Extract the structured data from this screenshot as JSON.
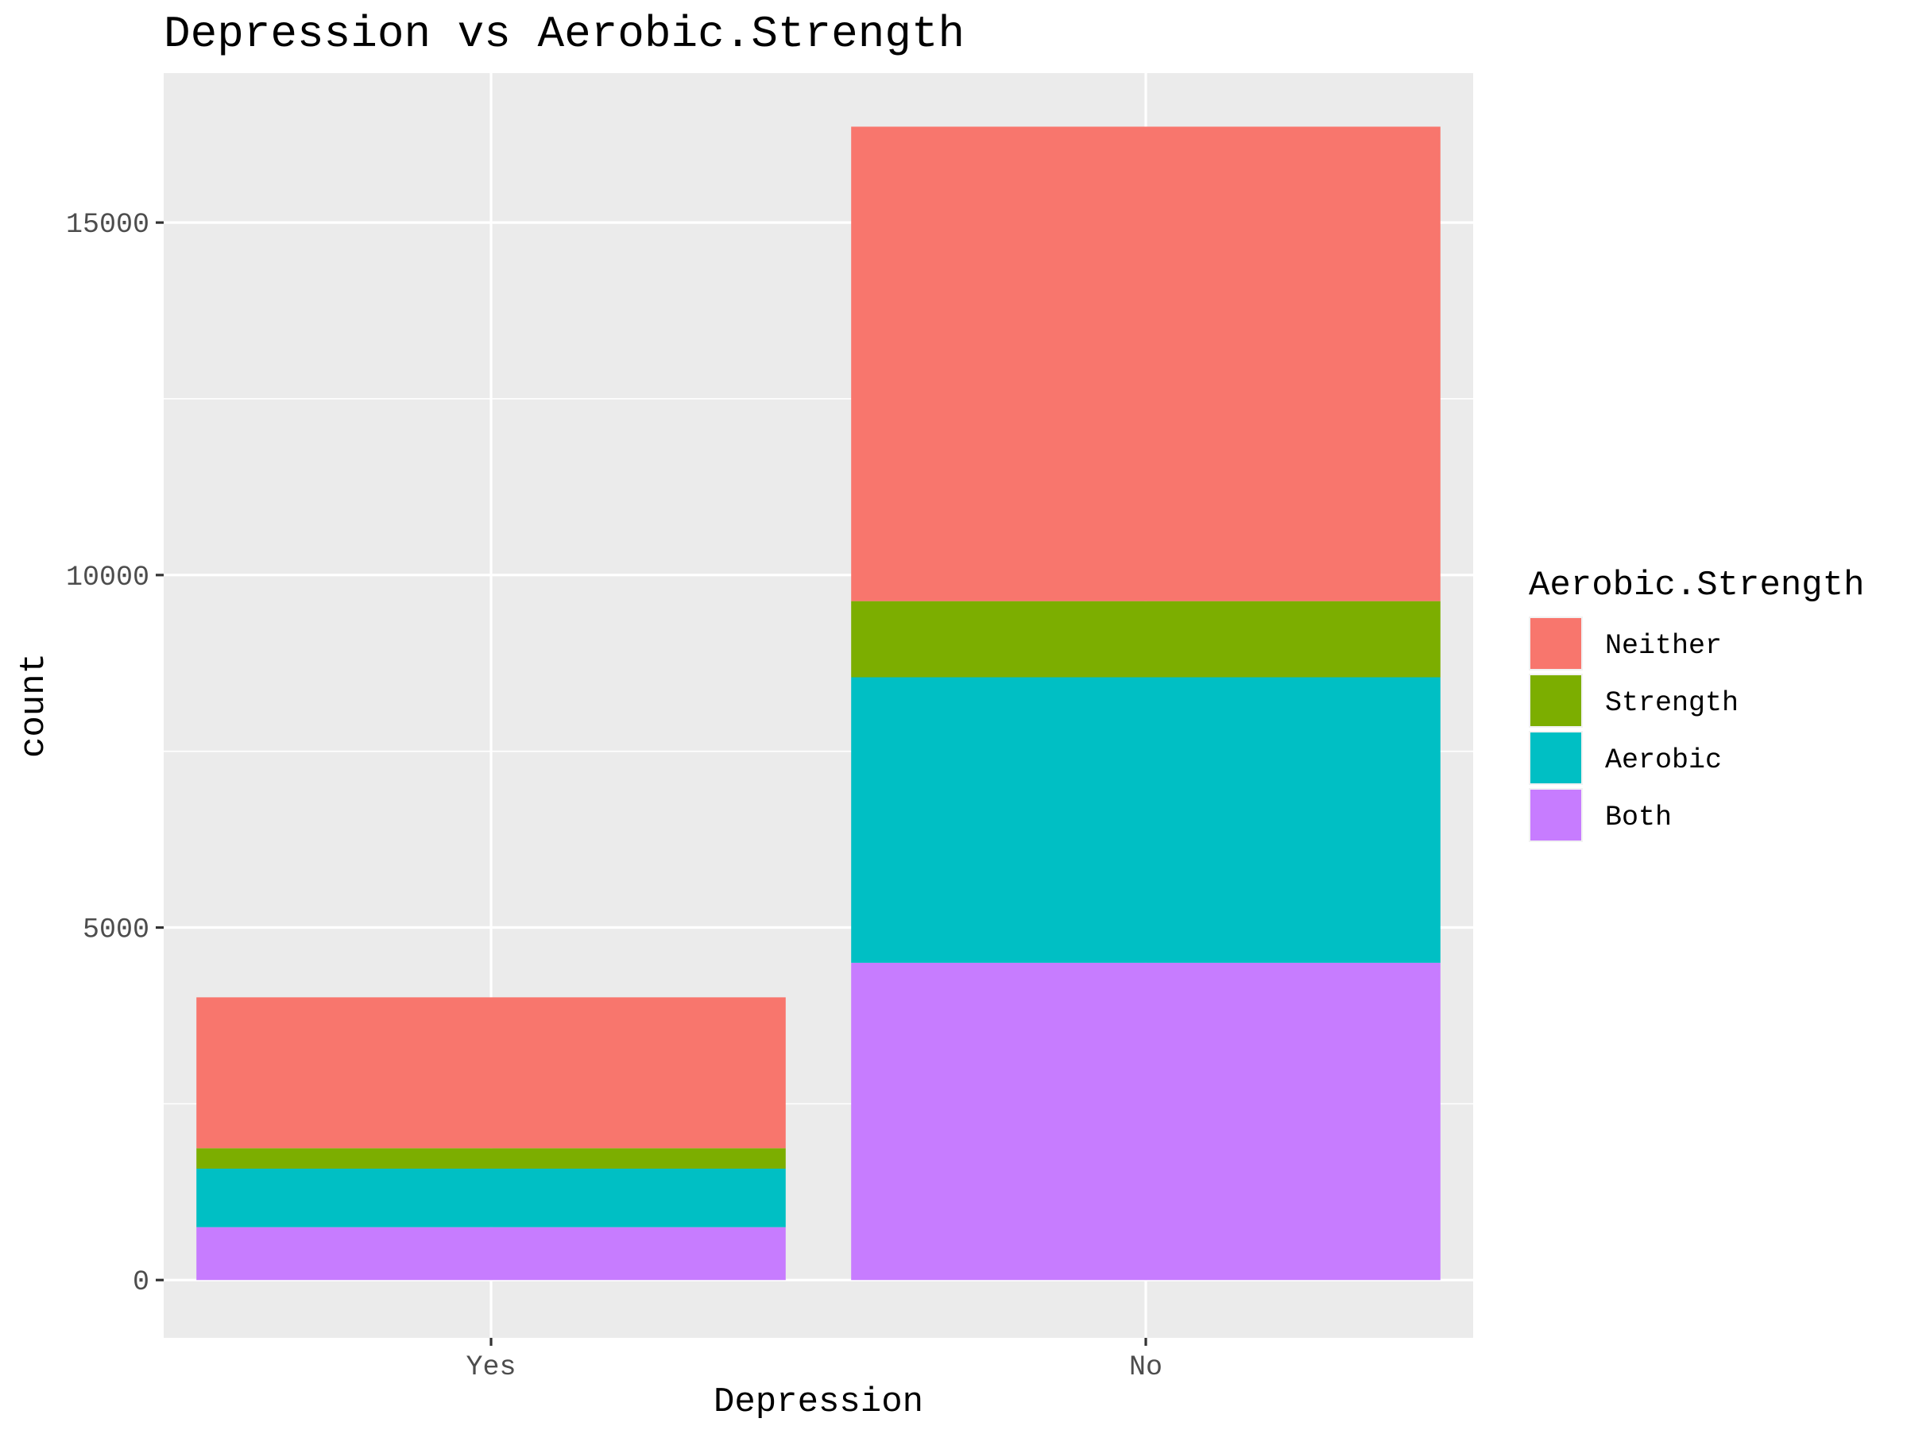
{
  "chart_data": {
    "type": "bar",
    "stacked": true,
    "title": "Depression vs Aerobic.Strength",
    "xlabel": "Depression",
    "ylabel": "count",
    "categories": [
      "Yes",
      "No"
    ],
    "series": [
      {
        "name": "Both",
        "color": "#C77CFF",
        "values": [
          750,
          4500
        ]
      },
      {
        "name": "Aerobic",
        "color": "#00BFC4",
        "values": [
          830,
          4050
        ]
      },
      {
        "name": "Strength",
        "color": "#7CAE00",
        "values": [
          290,
          1080
        ]
      },
      {
        "name": "Neither",
        "color": "#F8766D",
        "values": [
          2140,
          6730
        ]
      }
    ],
    "ylim": [
      -820,
      17120
    ],
    "yticks": [
      0,
      5000,
      10000,
      15000
    ],
    "yticklabels": [
      "0",
      "5000",
      "10000",
      "15000"
    ],
    "grid": true,
    "legend": {
      "title": "Aerobic.Strength",
      "placement": "right",
      "entries": [
        "Neither",
        "Strength",
        "Aerobic",
        "Both"
      ]
    }
  }
}
